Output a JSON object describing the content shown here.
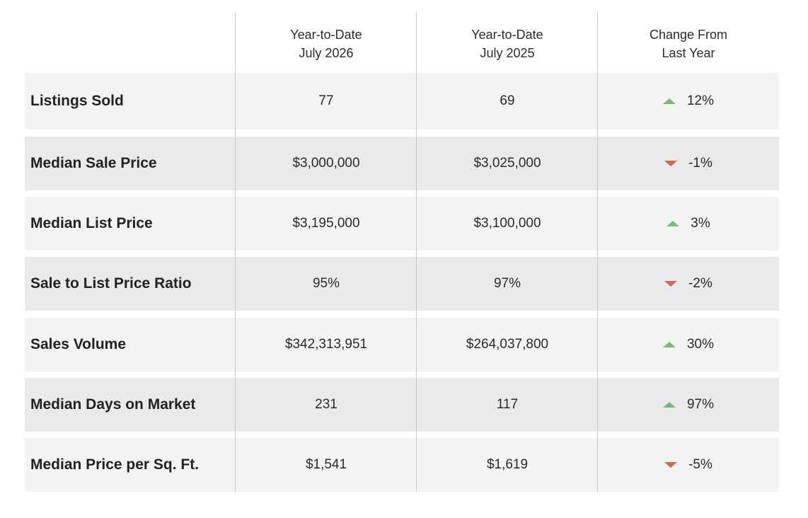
{
  "columns": {
    "ytd_current": [
      "Year-to-Date",
      "July 2026"
    ],
    "ytd_previous": [
      "Year-to-Date",
      "July 2025"
    ],
    "change": [
      "Change From",
      "Last Year"
    ]
  },
  "rows": [
    {
      "label": "Listings Sold",
      "current": "77",
      "previous": "69",
      "change": "12%",
      "direction": "up"
    },
    {
      "label": "Median Sale Price",
      "current": "$3,000,000",
      "previous": "$3,025,000",
      "change": "-1%",
      "direction": "down"
    },
    {
      "label": "Median List Price",
      "current": "$3,195,000",
      "previous": "$3,100,000",
      "change": "3%",
      "direction": "up"
    },
    {
      "label": "Sale to List Price Ratio",
      "current": "95%",
      "previous": "97%",
      "change": "-2%",
      "direction": "down"
    },
    {
      "label": "Sales Volume",
      "current": "$342,313,951",
      "previous": "$264,037,800",
      "change": "30%",
      "direction": "up"
    },
    {
      "label": "Median Days on Market",
      "current": "231",
      "previous": "117",
      "change": "97%",
      "direction": "up"
    },
    {
      "label": "Median Price per Sq. Ft.",
      "current": "$1,541",
      "previous": "$1,619",
      "change": "-5%",
      "direction": "down"
    }
  ],
  "colors": {
    "up": "#7cb97c",
    "down": "#d9664f"
  }
}
